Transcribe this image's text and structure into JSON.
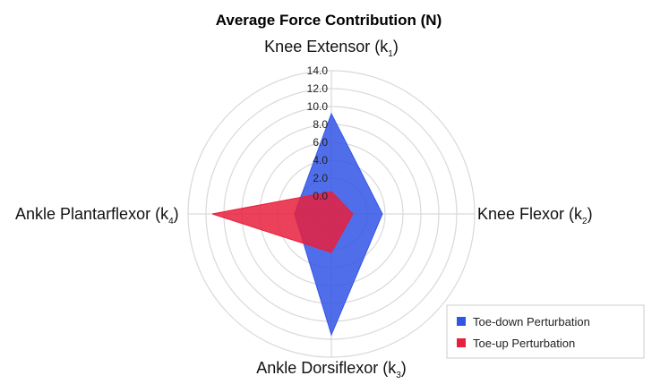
{
  "chart_data": {
    "type": "radar",
    "title": "Average Force Contribution (N)",
    "axes": [
      {
        "name": "Knee Extensor",
        "sub": "1"
      },
      {
        "name": "Knee Flexor",
        "sub": "2"
      },
      {
        "name": "Ankle Dorsiflexor",
        "sub": "3"
      },
      {
        "name": "Ankle Plantarflexor",
        "sub": "4"
      }
    ],
    "radial_ticks": [
      "0.0",
      "2.0",
      "4.0",
      "6.0",
      "8.0",
      "10.0",
      "12.0",
      "14.0"
    ],
    "rlim": [
      -2,
      14
    ],
    "grid": true,
    "legend_position": "bottom-right",
    "series": [
      {
        "name": "Toe-down Perturbation",
        "color": "#3355e6",
        "values": [
          9.2,
          3.7,
          11.5,
          2.1
        ]
      },
      {
        "name": "Toe-up Perturbation",
        "color": "#e8203d",
        "values": [
          0.5,
          0.4,
          2.3,
          11.3
        ]
      }
    ]
  }
}
